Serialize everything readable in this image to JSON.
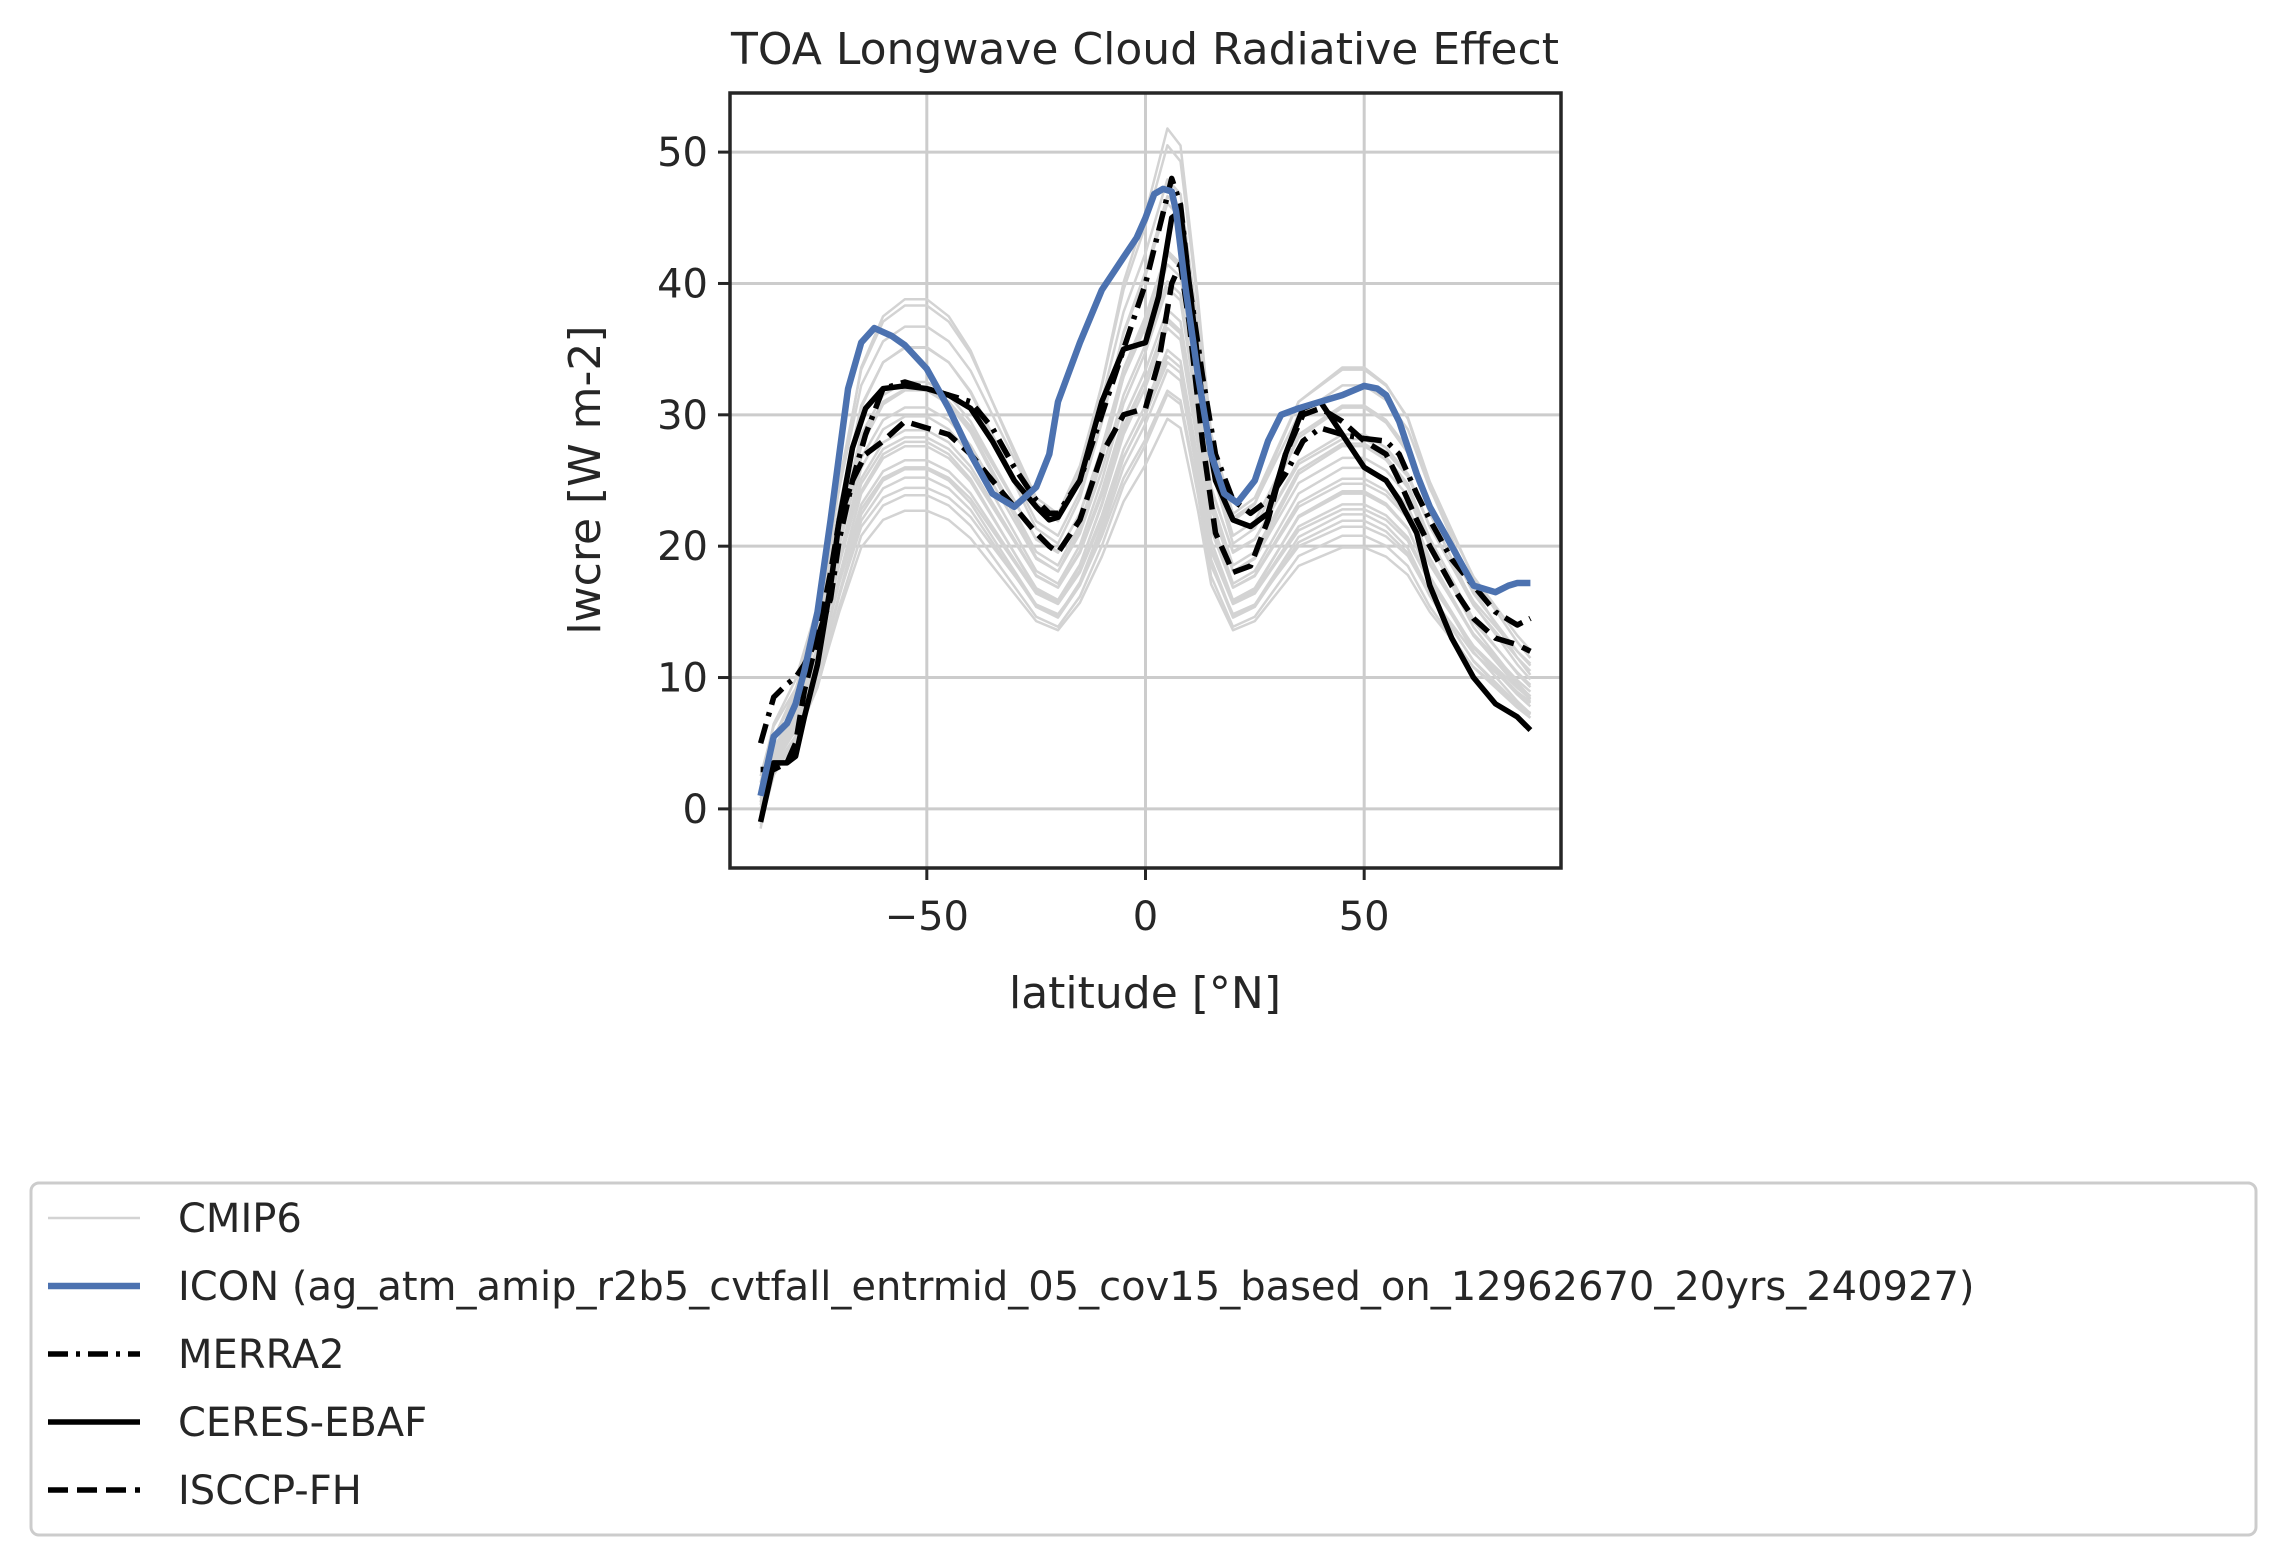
{
  "chart_data": {
    "type": "line",
    "title": "TOA Longwave Cloud Radiative Effect",
    "xlabel": "latitude [°N]",
    "ylabel": "lwcre [W m-2]",
    "xlim": [
      -95,
      95
    ],
    "ylim": [
      -4.5,
      54.5
    ],
    "xticks": [
      -50,
      0,
      50
    ],
    "yticks": [
      0,
      10,
      20,
      30,
      40,
      50
    ],
    "xtick_labels": [
      "−50",
      "0",
      "50"
    ],
    "ytick_labels": [
      "0",
      "10",
      "20",
      "30",
      "40",
      "50"
    ],
    "grid": true,
    "legend_placement": "below",
    "cmip6_color": "#d3d3d3",
    "icon_color": "#4c72b0",
    "obs_color": "#000000",
    "cmip6_name": "CMIP6",
    "cmip6_base": {
      "x": [
        -88,
        -85,
        -80,
        -75,
        -70,
        -65,
        -60,
        -55,
        -50,
        -45,
        -40,
        -35,
        -30,
        -25,
        -20,
        -15,
        -10,
        -5,
        0,
        5,
        8,
        12,
        15,
        20,
        25,
        30,
        35,
        40,
        45,
        50,
        55,
        60,
        65,
        70,
        75,
        80,
        85,
        88
      ],
      "y": [
        0,
        4,
        7,
        12,
        20,
        27,
        30,
        31,
        31,
        30,
        28,
        25,
        22,
        19,
        18,
        21,
        26,
        32,
        36,
        41,
        40,
        31,
        23,
        18,
        19,
        22,
        25,
        26,
        27,
        27,
        26,
        24,
        20,
        17,
        14,
        12,
        10,
        9
      ]
    },
    "cmip6_members": [
      {
        "scale": 1.3,
        "offset": -1.5
      },
      {
        "scale": 1.22,
        "offset": 0.5
      },
      {
        "scale": 1.15,
        "offset": -0.5
      },
      {
        "scale": 1.1,
        "offset": 1.0
      },
      {
        "scale": 1.06,
        "offset": -1.0
      },
      {
        "scale": 1.03,
        "offset": 0.0
      },
      {
        "scale": 1.0,
        "offset": 1.5
      },
      {
        "scale": 0.98,
        "offset": -0.5
      },
      {
        "scale": 0.96,
        "offset": 0.8
      },
      {
        "scale": 0.94,
        "offset": -1.2
      },
      {
        "scale": 0.92,
        "offset": 0.3
      },
      {
        "scale": 0.9,
        "offset": -0.3
      },
      {
        "scale": 0.88,
        "offset": 1.0
      },
      {
        "scale": 0.86,
        "offset": -0.8
      },
      {
        "scale": 0.84,
        "offset": 0.5
      },
      {
        "scale": 0.82,
        "offset": -0.2
      },
      {
        "scale": 0.8,
        "offset": 1.2
      },
      {
        "scale": 0.77,
        "offset": 0.0
      },
      {
        "scale": 0.74,
        "offset": 1.5
      },
      {
        "scale": 0.7,
        "offset": 1.0
      },
      {
        "scale": 1.12,
        "offset": 2.0
      },
      {
        "scale": 0.95,
        "offset": 2.5
      }
    ],
    "series": [
      {
        "name": "ICON (ag_atm_amip_r2b5_cvtfall_entrmid_05_cov15_based_on_12962670_20yrs_240927)",
        "style": "solid-thick",
        "x": [
          -88,
          -85,
          -82,
          -80,
          -78,
          -75,
          -72,
          -70,
          -68,
          -65,
          -62,
          -58,
          -55,
          -50,
          -45,
          -40,
          -35,
          -30,
          -25,
          -22,
          -20,
          -15,
          -10,
          -7,
          -5,
          -2,
          0,
          2,
          4,
          6,
          7,
          9,
          12,
          15,
          18,
          21,
          25,
          28,
          31,
          35,
          40,
          45,
          50,
          53,
          55,
          58,
          62,
          65,
          70,
          75,
          80,
          83,
          85,
          88
        ],
        "y": [
          1,
          5.5,
          6.5,
          8,
          10.5,
          15,
          22,
          27,
          32,
          35.5,
          36.6,
          36,
          35.3,
          33.5,
          30.5,
          27,
          24,
          23,
          24.5,
          27,
          31,
          35.5,
          39.5,
          41,
          42,
          43.5,
          45,
          46.8,
          47.2,
          47,
          45.5,
          40,
          33,
          27,
          24,
          23.3,
          25,
          28,
          30,
          30.5,
          31,
          31.5,
          32.2,
          32,
          31.5,
          29.5,
          25.5,
          23,
          20,
          17,
          16.5,
          17,
          17.2,
          17.2
        ]
      },
      {
        "name": "MERRA2",
        "style": "dashdot",
        "x": [
          -88,
          -85,
          -82,
          -80,
          -78,
          -75,
          -72,
          -70,
          -67,
          -64,
          -60,
          -55,
          -50,
          -45,
          -40,
          -35,
          -30,
          -25,
          -22,
          -20,
          -15,
          -10,
          -5,
          0,
          3,
          6,
          8,
          10,
          13,
          16,
          20,
          24,
          28,
          32,
          36,
          40,
          45,
          50,
          55,
          58,
          62,
          65,
          70,
          75,
          80,
          85,
          88
        ],
        "y": [
          5,
          8.5,
          9.5,
          10,
          11,
          13,
          16,
          20.5,
          25,
          28.5,
          32,
          32.5,
          32,
          31.5,
          31,
          29,
          26,
          23.5,
          22.5,
          22.5,
          25,
          30,
          35,
          40,
          44,
          48,
          46,
          40,
          33,
          27,
          23.5,
          22.5,
          23.5,
          25.5,
          28,
          29,
          28.5,
          28.2,
          28,
          27,
          24,
          22,
          19,
          17,
          15,
          14,
          14.5
        ]
      },
      {
        "name": "CERES-EBAF",
        "style": "solid",
        "x": [
          -88,
          -85,
          -82,
          -80,
          -78,
          -75,
          -72,
          -70,
          -67,
          -64,
          -60,
          -55,
          -50,
          -45,
          -40,
          -35,
          -30,
          -25,
          -22,
          -20,
          -15,
          -10,
          -5,
          0,
          3,
          6,
          8,
          10,
          13,
          16,
          20,
          24,
          28,
          32,
          36,
          40,
          45,
          50,
          55,
          58,
          62,
          65,
          70,
          75,
          80,
          85,
          88
        ],
        "y": [
          -1,
          3.5,
          3.5,
          4,
          7,
          11,
          17,
          22,
          27.5,
          30.5,
          32,
          32.2,
          32,
          31.5,
          30.5,
          28,
          25,
          23,
          22,
          22.2,
          25,
          31,
          35,
          35.5,
          39,
          45,
          45.5,
          40,
          31,
          25,
          22,
          21.5,
          22.5,
          27,
          30.5,
          31,
          28.5,
          26,
          25,
          23.5,
          21,
          17,
          13,
          10,
          8,
          7,
          6
        ]
      },
      {
        "name": "ISCCP-FH",
        "style": "dashed",
        "x": [
          -88,
          -85,
          -82,
          -80,
          -78,
          -75,
          -72,
          -70,
          -67,
          -64,
          -60,
          -55,
          -50,
          -45,
          -40,
          -35,
          -30,
          -25,
          -22,
          -20,
          -15,
          -10,
          -5,
          0,
          3,
          6,
          8,
          10,
          13,
          16,
          20,
          24,
          28,
          32,
          36,
          40,
          45,
          50,
          55,
          58,
          62,
          65,
          70,
          75,
          80,
          85,
          88
        ],
        "y": [
          3,
          3,
          3.5,
          5,
          9,
          13,
          18,
          22,
          25,
          27,
          28,
          29.5,
          29,
          28.5,
          27,
          25,
          23,
          21,
          20,
          19.5,
          22,
          27,
          30,
          30.5,
          34,
          40,
          41.5,
          37,
          28,
          21,
          18,
          18.5,
          22,
          27,
          30,
          30.5,
          29.5,
          28,
          27,
          25,
          22,
          20,
          17,
          14.5,
          13,
          12.5,
          12
        ]
      }
    ]
  }
}
